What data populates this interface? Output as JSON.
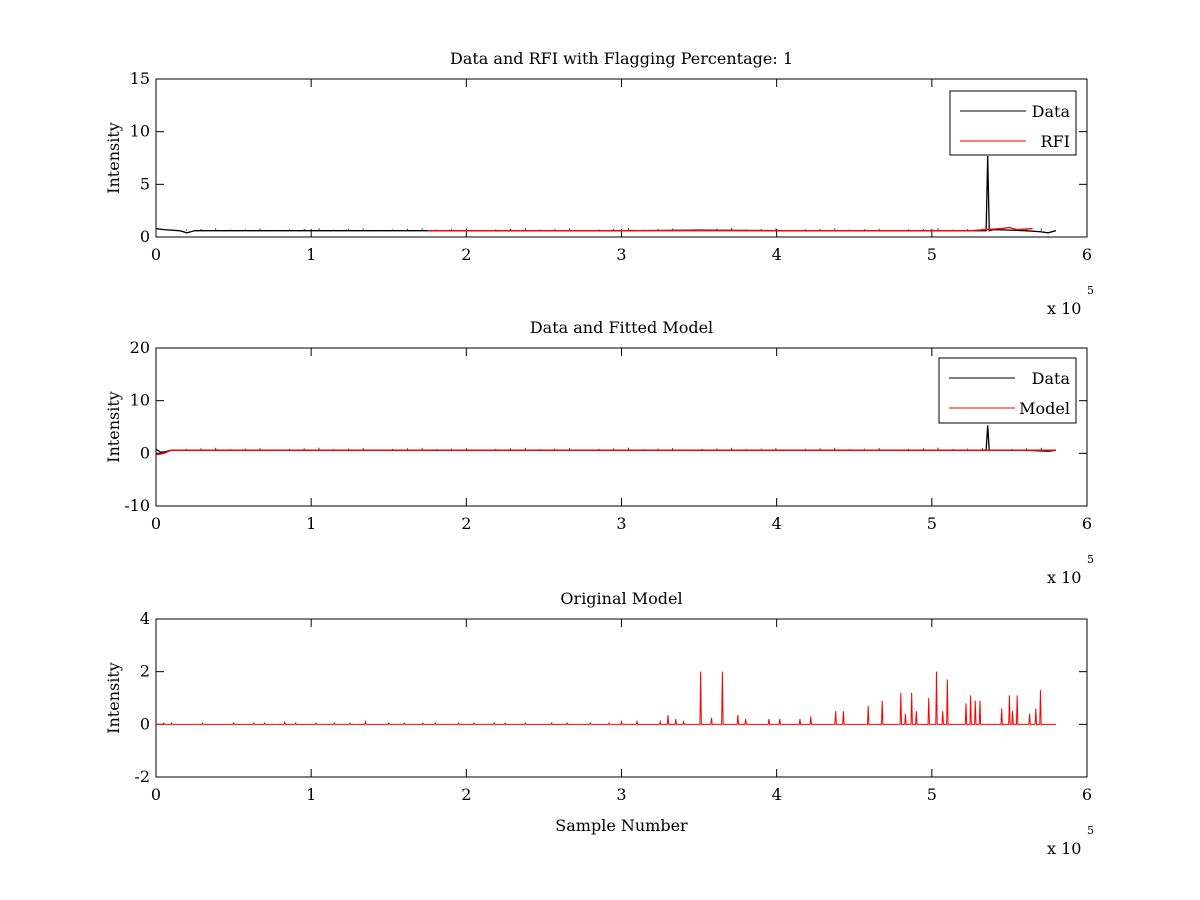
{
  "chart_data": [
    {
      "type": "line",
      "title": "Data and RFI with Flagging Percentage: 1",
      "xlabel": "",
      "ylabel": "Intensity",
      "xlim": [
        0,
        600000
      ],
      "ylim": [
        0,
        15
      ],
      "xticks": [
        0,
        1,
        2,
        3,
        4,
        5,
        6
      ],
      "yticks": [
        0,
        5,
        10,
        15
      ],
      "x_multiplier_label": "x 10",
      "x_multiplier_exponent": "5",
      "legend": "top-right",
      "series": [
        {
          "name": "Data",
          "color": "#000000",
          "baseline": 0.6,
          "x": [
            0,
            5000,
            15000,
            20000,
            25000,
            100000,
            200000,
            300000,
            350000,
            400000,
            450000,
            500000,
            530000,
            535000,
            536000,
            537000,
            540000,
            560000,
            570000,
            575000,
            580000
          ],
          "y": [
            0.8,
            0.7,
            0.6,
            0.4,
            0.6,
            0.6,
            0.6,
            0.6,
            0.65,
            0.6,
            0.6,
            0.6,
            0.6,
            0.6,
            7.7,
            0.6,
            0.7,
            0.6,
            0.5,
            0.4,
            0.6
          ]
        },
        {
          "name": "RFI",
          "color": "#ff0000",
          "x": [
            175000,
            500000,
            525000,
            545000,
            550000,
            555000,
            565000
          ],
          "y": [
            0.6,
            0.6,
            0.6,
            0.8,
            0.9,
            0.7,
            0.8
          ]
        }
      ]
    },
    {
      "type": "line",
      "title": "Data and Fitted Model",
      "xlabel": "",
      "ylabel": "Intensity",
      "xlim": [
        0,
        600000
      ],
      "ylim": [
        -10,
        20
      ],
      "xticks": [
        0,
        1,
        2,
        3,
        4,
        5,
        6
      ],
      "yticks": [
        -10,
        0,
        10,
        20
      ],
      "x_multiplier_label": "x 10",
      "x_multiplier_exponent": "5",
      "legend": "top-right",
      "series": [
        {
          "name": "Data",
          "color": "#000000",
          "x": [
            0,
            3000,
            6000,
            10000,
            20000,
            100000,
            300000,
            400000,
            500000,
            535000,
            536000,
            537000,
            560000,
            575000,
            580000
          ],
          "y": [
            0.8,
            0.2,
            0.3,
            0.6,
            0.6,
            0.6,
            0.6,
            0.6,
            0.6,
            0.6,
            5.3,
            0.6,
            0.6,
            0.4,
            0.6
          ]
        },
        {
          "name": "Model",
          "color": "#ff0000",
          "x": [
            0,
            5000,
            10000,
            580000
          ],
          "y": [
            -0.3,
            0.0,
            0.6,
            0.6
          ]
        }
      ]
    },
    {
      "type": "line",
      "title": "Original Model",
      "xlabel": "Sample Number",
      "ylabel": "Intensity",
      "xlim": [
        0,
        600000
      ],
      "ylim": [
        -2,
        4
      ],
      "xticks": [
        0,
        1,
        2,
        3,
        4,
        5,
        6
      ],
      "yticks": [
        -2,
        0,
        2,
        4
      ],
      "x_multiplier_label": "x 10",
      "x_multiplier_exponent": "5",
      "series": [
        {
          "name": "",
          "color": "#ff0000",
          "peaks_x": [
            5000,
            10000,
            30000,
            50000,
            63000,
            70000,
            83000,
            90000,
            103000,
            115000,
            125000,
            135000,
            150000,
            160000,
            172000,
            180000,
            195000,
            205000,
            218000,
            225000,
            238000,
            255000,
            265000,
            280000,
            292000,
            300000,
            310000,
            325000,
            330000,
            335000,
            340000,
            351000,
            358000,
            365000,
            375000,
            380000,
            395000,
            402000,
            415000,
            422000,
            438000,
            443000,
            459000,
            468000,
            480000,
            483000,
            487000,
            490000,
            498000,
            503000,
            507000,
            510000,
            522000,
            525000,
            528000,
            531000,
            545000,
            550000,
            552000,
            555000,
            563000,
            567000,
            570000
          ],
          "peaks_y": [
            0.05,
            0.05,
            0.05,
            0.05,
            0.05,
            0.05,
            0.08,
            0.05,
            0.05,
            0.05,
            0.05,
            0.1,
            0.05,
            0.05,
            0.05,
            0.05,
            0.05,
            0.05,
            0.05,
            0.05,
            0.05,
            0.05,
            0.05,
            0.05,
            0.05,
            0.1,
            0.1,
            0.1,
            0.35,
            0.2,
            0.1,
            2.0,
            0.25,
            2.0,
            0.35,
            0.2,
            0.2,
            0.2,
            0.2,
            0.3,
            0.5,
            0.5,
            0.7,
            0.9,
            1.2,
            0.4,
            1.2,
            0.5,
            1.0,
            2.0,
            0.5,
            1.7,
            0.8,
            1.1,
            0.9,
            0.9,
            0.6,
            1.1,
            0.5,
            1.1,
            0.4,
            0.6,
            1.3
          ],
          "x_end": 580000
        }
      ]
    }
  ]
}
